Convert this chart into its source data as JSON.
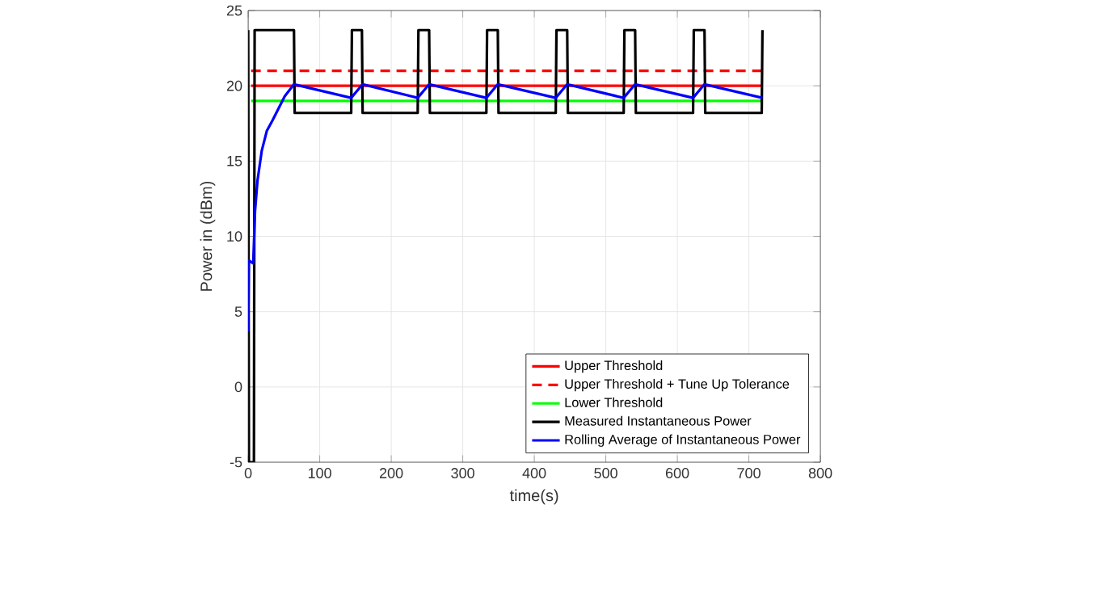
{
  "chart_data": {
    "type": "line",
    "xlabel": "time(s)",
    "ylabel": "Power in (dBm)",
    "xlim": [
      0,
      800
    ],
    "ylim": [
      -5,
      25
    ],
    "xticks": [
      0,
      100,
      200,
      300,
      400,
      500,
      600,
      700,
      800
    ],
    "yticks": [
      -5,
      0,
      5,
      10,
      15,
      20,
      25
    ],
    "grid": true,
    "legend": "bottom right",
    "series": [
      {
        "name": "Upper Threshold",
        "color": "#ff0000",
        "line_style": "solid",
        "x": [
          4,
          719
        ],
        "values": [
          20,
          20
        ]
      },
      {
        "name": "Upper Threshold + Tune Up Tolerance",
        "color": "#ff0000",
        "line_style": "dashed",
        "x": [
          4,
          719
        ],
        "values": [
          21,
          21
        ]
      },
      {
        "name": "Lower Threshold",
        "color": "#00ff00",
        "line_style": "solid",
        "x": [
          4,
          719
        ],
        "values": [
          19,
          19
        ]
      },
      {
        "name": "Measured Instantaneous Power",
        "color": "#000000",
        "line_style": "solid",
        "x": [
          0,
          1,
          8,
          9,
          64,
          65,
          144,
          145,
          159,
          160,
          237,
          238,
          253,
          254,
          333,
          334,
          349,
          350,
          430,
          431,
          446,
          447,
          525,
          526,
          541,
          542,
          622,
          623,
          638,
          639,
          718,
          719
        ],
        "values": [
          23.7,
          -5,
          -5,
          23.7,
          23.7,
          18.2,
          18.2,
          23.7,
          23.7,
          18.2,
          18.2,
          23.7,
          23.7,
          18.2,
          18.2,
          23.7,
          23.7,
          18.2,
          18.2,
          23.7,
          23.7,
          18.2,
          18.2,
          23.7,
          23.7,
          18.2,
          18.2,
          23.7,
          23.7,
          18.2,
          18.2,
          23.7
        ]
      },
      {
        "name": "Rolling Average of Instantaneous Power",
        "color": "#0000ff",
        "line_style": "solid",
        "x": [
          0,
          1,
          7,
          9.6,
          13,
          19,
          26,
          34,
          51,
          64,
          144,
          160,
          237,
          253,
          333,
          349,
          430,
          446,
          525,
          541,
          622,
          638,
          719
        ],
        "values": [
          3.7,
          8.4,
          8.2,
          11.7,
          13.7,
          15.7,
          17,
          17.7,
          19.3,
          20.1,
          19.2,
          20.1,
          19.2,
          20.1,
          19.2,
          20.1,
          19.2,
          20.1,
          19.2,
          20.1,
          19.2,
          20.1,
          19.2
        ]
      }
    ]
  }
}
